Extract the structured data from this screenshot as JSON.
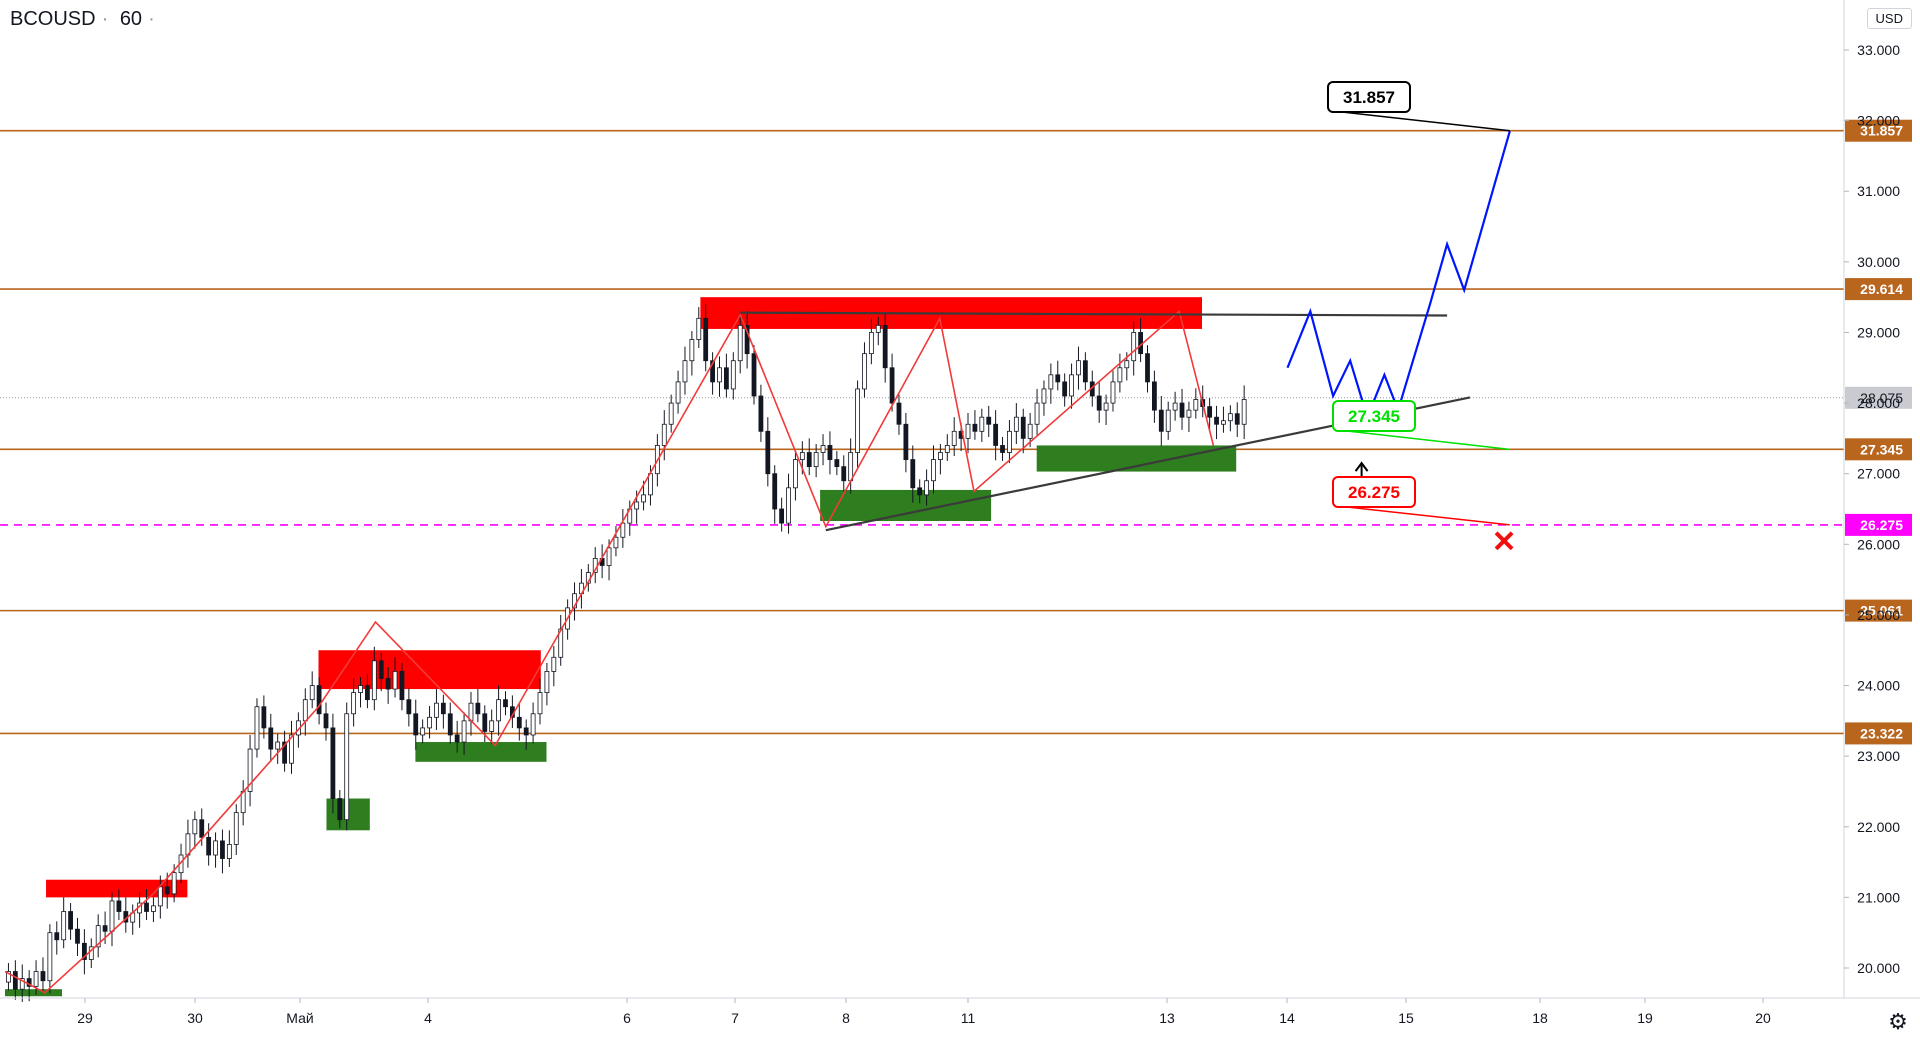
{
  "header": {
    "symbol": "BCOUSD",
    "interval": "60",
    "currency": "USD"
  },
  "colors": {
    "level_line": "#b8651e",
    "resistance_zone": "#ff0000",
    "support_zone": "#2e7d1e",
    "zigzag": "#f23a3a",
    "projection": "#0015ff",
    "trendline": "#3a3a3a",
    "invalidation": "#ff00ff",
    "target_label_border": "#000000",
    "support_label_text": "#00e000",
    "stop_label_text": "#ff0000"
  },
  "chart_data": {
    "type": "candlestick",
    "symbol": "BCOUSD",
    "interval": "60",
    "y_axis": {
      "ticks": [
        "20.000",
        "21.000",
        "22.000",
        "23.000",
        "24.000",
        "25.000",
        "26.000",
        "27.000",
        "28.000",
        "29.000",
        "30.000",
        "31.000",
        "32.000",
        "33.000"
      ],
      "range": [
        19.6,
        33.4
      ]
    },
    "x_axis": {
      "tick_labels": [
        "29",
        "30",
        "Май",
        "4",
        "6",
        "7",
        "8",
        "11",
        "13",
        "14",
        "15",
        "18",
        "19",
        "20"
      ]
    },
    "last_price": "28.075",
    "levels": [
      {
        "value": 31.857,
        "label": "31.857",
        "style": "solid"
      },
      {
        "value": 29.614,
        "label": "29.614",
        "style": "solid"
      },
      {
        "value": 27.345,
        "label": "27.345",
        "style": "solid"
      },
      {
        "value": 26.275,
        "label": "26.275",
        "style": "dashed"
      },
      {
        "value": 25.061,
        "label": "25.061",
        "style": "solid"
      },
      {
        "value": 23.322,
        "label": "23.322",
        "style": "solid"
      }
    ],
    "annotations": {
      "target": "31.857",
      "support": "27.345",
      "stop": "26.275"
    },
    "resistance_zones": [
      {
        "t_start": 0.36,
        "t_end": 1.6,
        "y_low": 21.0,
        "y_high": 21.25
      },
      {
        "t_start": 2.75,
        "t_end": 4.7,
        "y_low": 23.95,
        "y_high": 24.5
      },
      {
        "t_start": 6.1,
        "t_end": 10.5,
        "y_low": 29.05,
        "y_high": 29.5
      }
    ],
    "support_zones": [
      {
        "t_start": 0.0,
        "t_end": 0.5,
        "y_low": 19.6,
        "y_high": 19.7
      },
      {
        "t_start": 2.82,
        "t_end": 3.2,
        "y_low": 21.95,
        "y_high": 22.4
      },
      {
        "t_start": 3.6,
        "t_end": 4.75,
        "y_low": 22.92,
        "y_high": 23.2
      },
      {
        "t_start": 7.15,
        "t_end": 8.65,
        "y_low": 26.33,
        "y_high": 26.77
      },
      {
        "t_start": 9.05,
        "t_end": 10.8,
        "y_low": 27.03,
        "y_high": 27.4
      }
    ],
    "zigzag": [
      [
        0,
        19.95
      ],
      [
        0.35,
        19.65
      ],
      [
        1.3,
        21.05
      ],
      [
        2.75,
        23.7
      ],
      [
        3.25,
        24.9
      ],
      [
        4.3,
        23.15
      ],
      [
        6.45,
        29.25
      ],
      [
        7.2,
        26.25
      ],
      [
        8.2,
        29.2
      ],
      [
        8.5,
        26.75
      ],
      [
        10.3,
        29.3
      ],
      [
        10.6,
        27.4
      ]
    ],
    "triangle_top": [
      [
        6.45,
        29.28
      ],
      [
        12.65,
        29.24
      ]
    ],
    "triangle_bottom": [
      [
        7.2,
        26.2
      ],
      [
        12.85,
        28.08
      ]
    ],
    "projection": [
      [
        11.25,
        28.5
      ],
      [
        11.45,
        29.3
      ],
      [
        11.65,
        28.1
      ],
      [
        11.8,
        28.6
      ],
      [
        11.95,
        27.8
      ],
      [
        12.1,
        28.4
      ],
      [
        12.22,
        27.9
      ],
      [
        12.5,
        29.4
      ],
      [
        12.65,
        30.25
      ],
      [
        12.8,
        29.6
      ],
      [
        13.2,
        31.85
      ]
    ],
    "arrow_up": {
      "t": 11.9,
      "y": 27.15
    },
    "stop_marker": {
      "t": 13.15,
      "y": 26.05
    },
    "candles": [
      [
        19.8,
        19.95
      ],
      [
        19.95,
        19.7
      ],
      [
        19.7,
        19.85
      ],
      [
        19.85,
        19.74
      ],
      [
        19.74,
        19.95
      ],
      [
        19.95,
        19.82
      ],
      [
        19.82,
        20.5
      ],
      [
        20.5,
        20.4
      ],
      [
        20.4,
        20.8
      ],
      [
        20.8,
        20.55
      ],
      [
        20.55,
        20.35
      ],
      [
        20.35,
        20.12
      ],
      [
        20.12,
        20.3
      ],
      [
        20.3,
        20.6
      ],
      [
        20.6,
        20.52
      ],
      [
        20.52,
        20.95
      ],
      [
        20.95,
        20.8
      ],
      [
        20.8,
        20.65
      ],
      [
        20.65,
        20.78
      ],
      [
        20.78,
        20.92
      ],
      [
        20.92,
        20.8
      ],
      [
        20.8,
        20.88
      ],
      [
        20.88,
        21.15
      ],
      [
        21.15,
        21.05
      ],
      [
        21.05,
        21.35
      ],
      [
        21.35,
        21.6
      ],
      [
        21.6,
        21.9
      ],
      [
        21.9,
        22.1
      ],
      [
        22.1,
        21.85
      ],
      [
        21.85,
        21.6
      ],
      [
        21.6,
        21.8
      ],
      [
        21.8,
        21.55
      ],
      [
        21.55,
        21.75
      ],
      [
        21.75,
        22.2
      ],
      [
        22.2,
        22.5
      ],
      [
        22.5,
        23.1
      ],
      [
        23.1,
        23.7
      ],
      [
        23.7,
        23.4
      ],
      [
        23.4,
        23.1
      ],
      [
        23.1,
        23.2
      ],
      [
        23.2,
        22.9
      ],
      [
        22.9,
        23.3
      ],
      [
        23.3,
        23.5
      ],
      [
        23.5,
        23.8
      ],
      [
        23.8,
        24.0
      ],
      [
        24.0,
        23.6
      ],
      [
        23.6,
        23.4
      ],
      [
        23.4,
        22.4
      ],
      [
        22.4,
        22.1
      ],
      [
        22.1,
        23.6
      ],
      [
        23.6,
        23.9
      ],
      [
        23.9,
        24.0
      ],
      [
        24.0,
        23.8
      ],
      [
        23.8,
        24.35
      ],
      [
        24.35,
        24.1
      ],
      [
        24.1,
        23.95
      ],
      [
        23.95,
        24.2
      ],
      [
        24.2,
        23.8
      ],
      [
        23.8,
        23.6
      ],
      [
        23.6,
        23.3
      ],
      [
        23.3,
        23.4
      ],
      [
        23.4,
        23.55
      ],
      [
        23.55,
        23.75
      ],
      [
        23.75,
        23.6
      ],
      [
        23.6,
        23.3
      ],
      [
        23.3,
        23.2
      ],
      [
        23.2,
        23.5
      ],
      [
        23.5,
        23.75
      ],
      [
        23.75,
        23.6
      ],
      [
        23.6,
        23.35
      ],
      [
        23.35,
        23.5
      ],
      [
        23.5,
        23.8
      ],
      [
        23.8,
        23.7
      ],
      [
        23.7,
        23.55
      ],
      [
        23.55,
        23.4
      ],
      [
        23.4,
        23.3
      ],
      [
        23.3,
        23.6
      ],
      [
        23.6,
        23.9
      ],
      [
        23.9,
        24.2
      ],
      [
        24.2,
        24.4
      ],
      [
        24.4,
        24.8
      ],
      [
        24.8,
        25.1
      ],
      [
        25.1,
        25.3
      ],
      [
        25.3,
        25.45
      ],
      [
        25.45,
        25.6
      ],
      [
        25.6,
        25.8
      ],
      [
        25.8,
        25.7
      ],
      [
        25.7,
        25.95
      ],
      [
        25.95,
        26.1
      ],
      [
        26.1,
        26.3
      ],
      [
        26.3,
        26.5
      ],
      [
        26.5,
        26.6
      ],
      [
        26.6,
        26.7
      ],
      [
        26.7,
        27.0
      ],
      [
        27.0,
        27.4
      ],
      [
        27.4,
        27.7
      ],
      [
        27.7,
        28.0
      ],
      [
        28.0,
        28.3
      ],
      [
        28.3,
        28.6
      ],
      [
        28.6,
        28.9
      ],
      [
        28.9,
        29.2
      ],
      [
        29.2,
        28.6
      ],
      [
        28.6,
        28.3
      ],
      [
        28.3,
        28.5
      ],
      [
        28.5,
        28.2
      ],
      [
        28.2,
        28.6
      ],
      [
        28.6,
        29.1
      ],
      [
        29.1,
        28.7
      ],
      [
        28.7,
        28.1
      ],
      [
        28.1,
        27.6
      ],
      [
        27.6,
        27.0
      ],
      [
        27.0,
        26.5
      ],
      [
        26.5,
        26.3
      ],
      [
        26.3,
        26.8
      ],
      [
        26.8,
        27.2
      ],
      [
        27.2,
        27.3
      ],
      [
        27.3,
        27.1
      ],
      [
        27.1,
        27.3
      ],
      [
        27.3,
        27.4
      ],
      [
        27.4,
        27.2
      ],
      [
        27.2,
        27.1
      ],
      [
        27.1,
        26.9
      ],
      [
        26.9,
        27.3
      ],
      [
        27.3,
        28.2
      ],
      [
        28.2,
        28.7
      ],
      [
        28.7,
        29.0
      ],
      [
        29.0,
        29.1
      ],
      [
        29.1,
        28.5
      ],
      [
        28.5,
        28.0
      ],
      [
        28.0,
        27.7
      ],
      [
        27.7,
        27.2
      ],
      [
        27.2,
        26.8
      ],
      [
        26.8,
        26.7
      ],
      [
        26.7,
        26.9
      ],
      [
        26.9,
        27.2
      ],
      [
        27.2,
        27.3
      ],
      [
        27.3,
        27.4
      ],
      [
        27.4,
        27.6
      ],
      [
        27.6,
        27.5
      ],
      [
        27.5,
        27.7
      ],
      [
        27.7,
        27.6
      ],
      [
        27.6,
        27.8
      ],
      [
        27.8,
        27.7
      ],
      [
        27.7,
        27.4
      ],
      [
        27.4,
        27.3
      ],
      [
        27.3,
        27.6
      ],
      [
        27.6,
        27.8
      ],
      [
        27.8,
        27.5
      ],
      [
        27.5,
        27.7
      ],
      [
        27.7,
        28.0
      ],
      [
        28.0,
        28.2
      ],
      [
        28.2,
        28.4
      ],
      [
        28.4,
        28.3
      ],
      [
        28.3,
        28.1
      ],
      [
        28.1,
        28.4
      ],
      [
        28.4,
        28.6
      ],
      [
        28.6,
        28.3
      ],
      [
        28.3,
        28.1
      ],
      [
        28.1,
        27.9
      ],
      [
        27.9,
        28.0
      ],
      [
        28.0,
        28.3
      ],
      [
        28.3,
        28.5
      ],
      [
        28.5,
        28.6
      ],
      [
        28.6,
        29.0
      ],
      [
        29.0,
        28.7
      ],
      [
        28.7,
        28.3
      ],
      [
        28.3,
        27.9
      ],
      [
        27.9,
        27.6
      ],
      [
        27.6,
        27.9
      ],
      [
        27.9,
        28.0
      ],
      [
        28.0,
        27.8
      ],
      [
        27.8,
        27.9
      ],
      [
        27.9,
        28.05
      ],
      [
        28.05,
        27.95
      ],
      [
        27.95,
        27.8
      ],
      [
        27.8,
        27.7
      ],
      [
        27.7,
        27.75
      ],
      [
        27.75,
        27.85
      ],
      [
        27.85,
        27.7
      ],
      [
        27.7,
        28.05
      ]
    ]
  }
}
